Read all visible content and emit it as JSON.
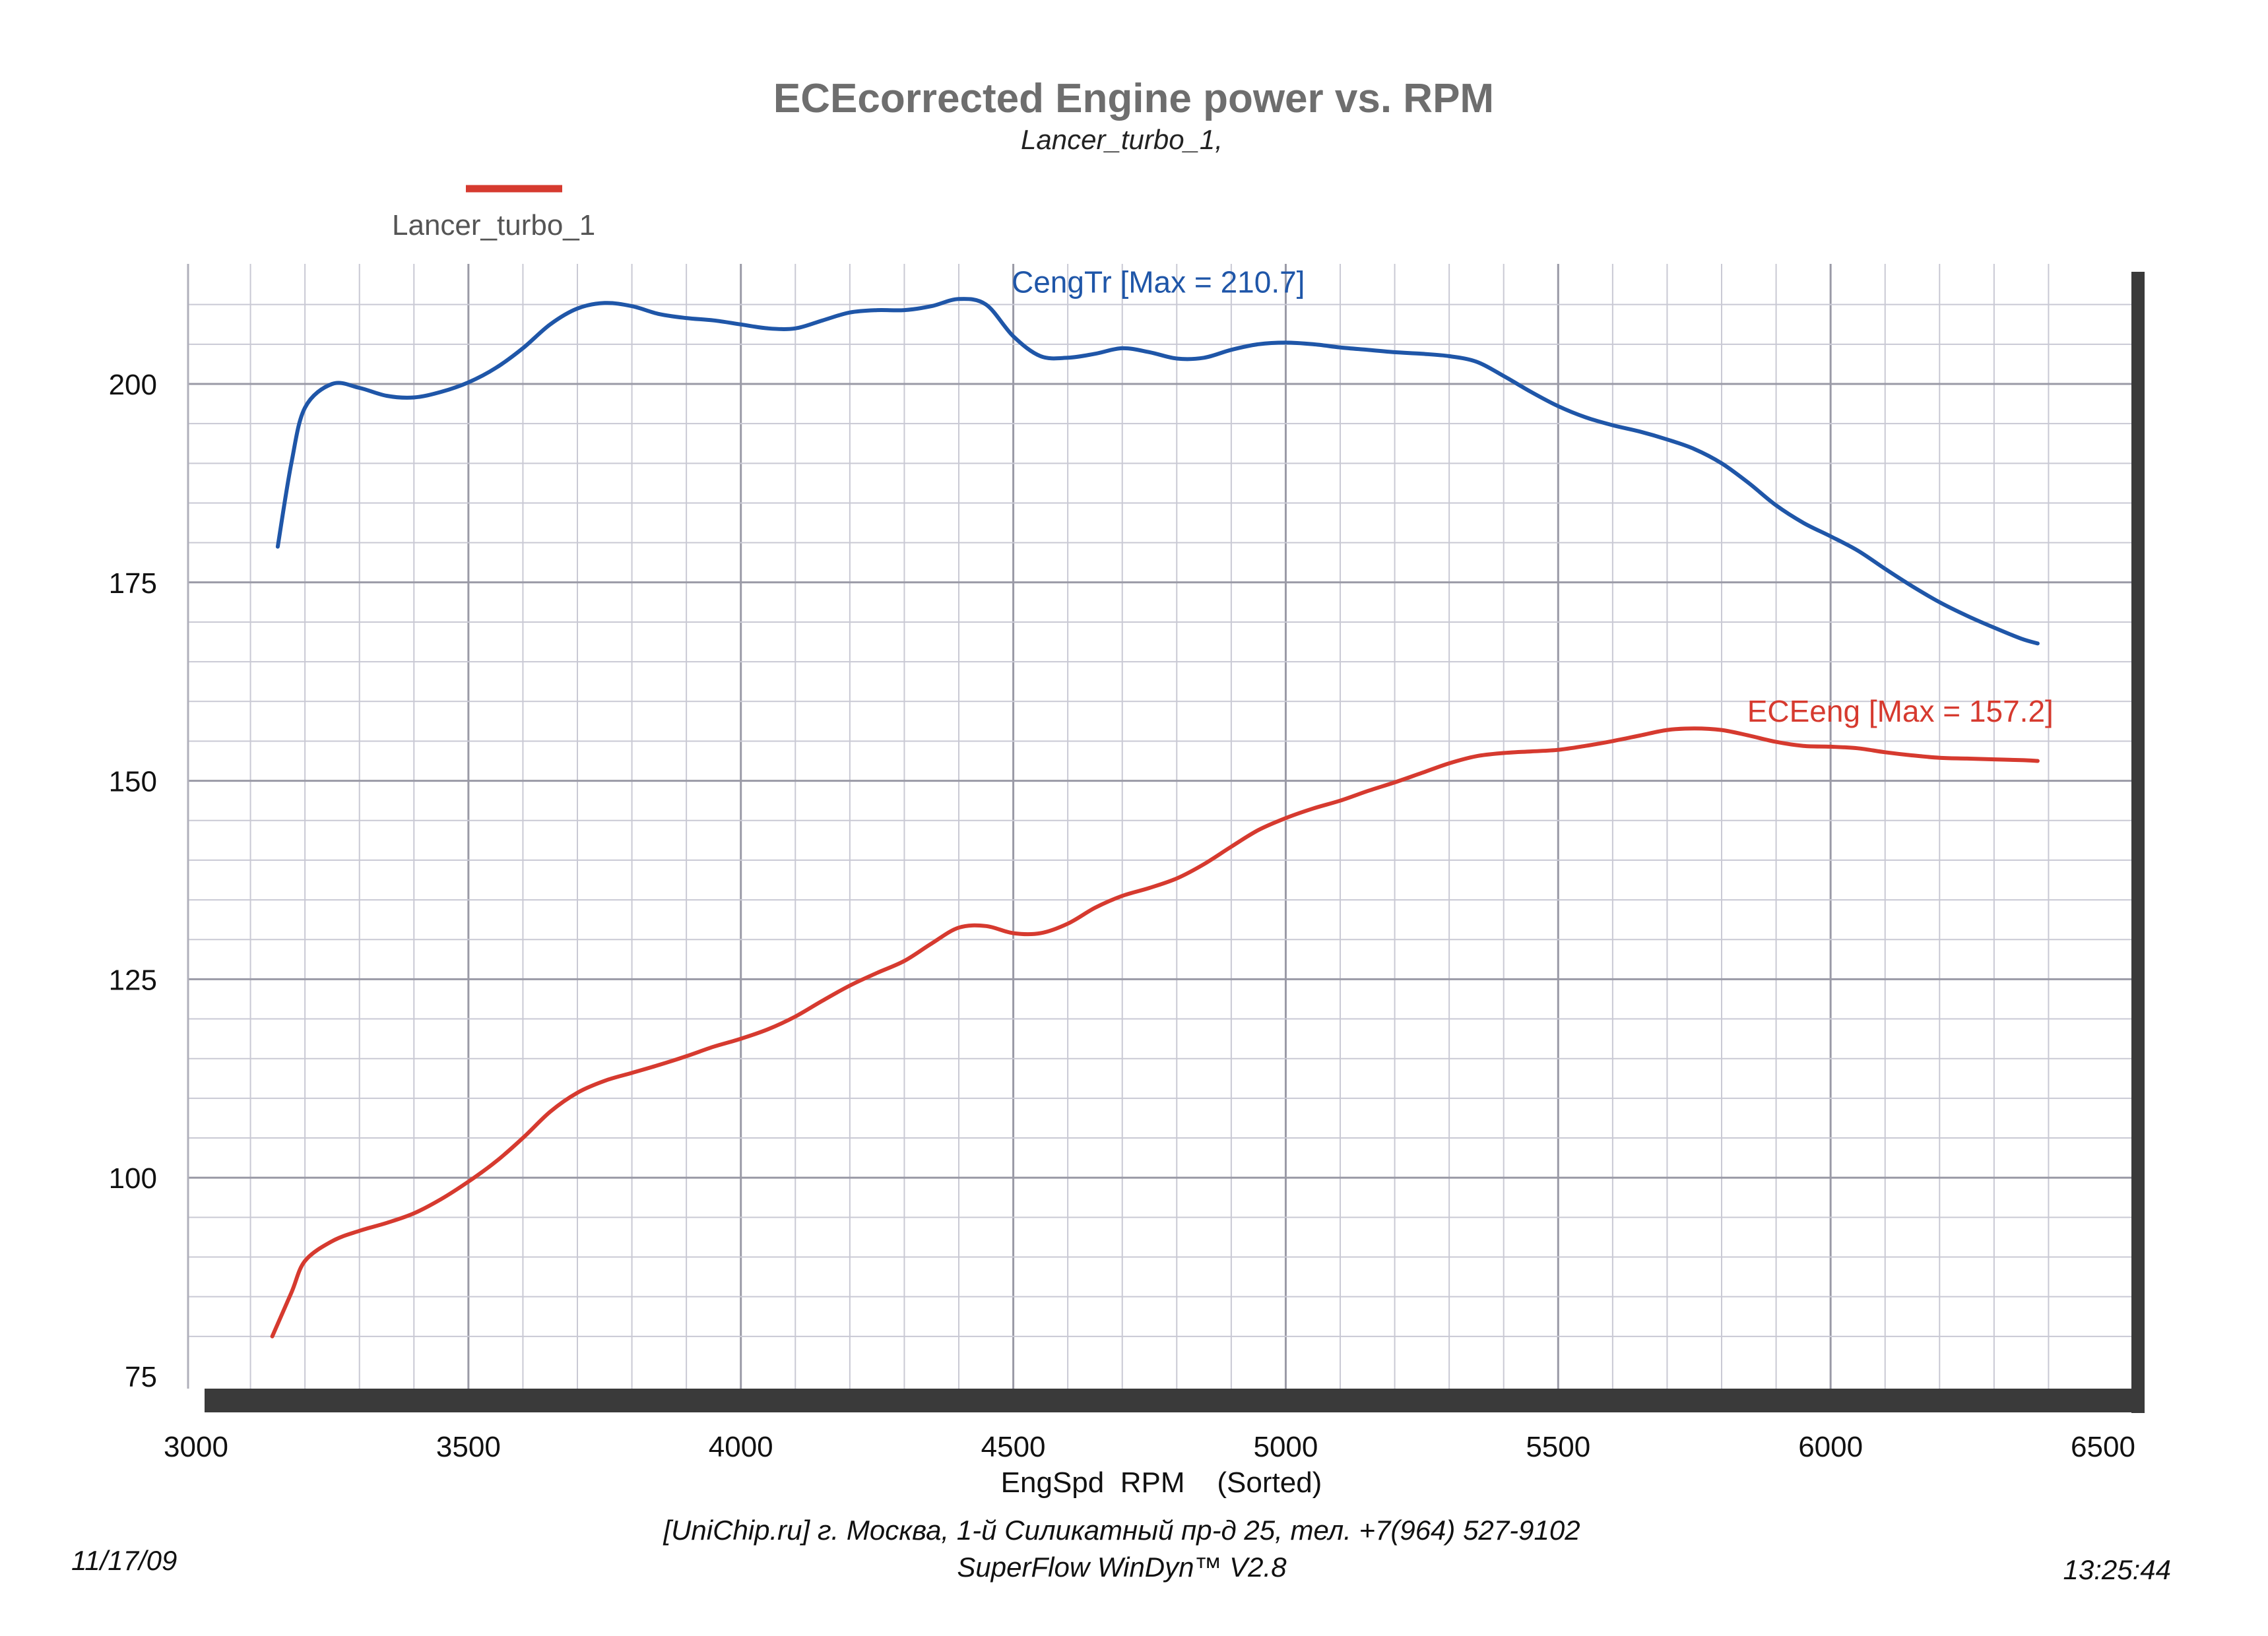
{
  "chart_data": {
    "type": "line",
    "title": "ECEcorrected Engine power vs. RPM",
    "subtitle": "Lancer_turbo_1,",
    "legend": {
      "label": "Lancer_turbo_1",
      "color": "#d63a2f",
      "placement": "top-left"
    },
    "xlabel": "EngSpd  RPM    (Sorted)",
    "ylabel": "",
    "xlim": [
      3000,
      6500
    ],
    "ylim": [
      75,
      210
    ],
    "x_ticks": [
      3000,
      3500,
      4000,
      4500,
      5000,
      5500,
      6000,
      6500
    ],
    "y_ticks": [
      75,
      100,
      125,
      150,
      175,
      200
    ],
    "grid": true,
    "series": [
      {
        "name": "CengTr",
        "annotation": "CengTr [Max = 210.7]",
        "color": "#1f56a8",
        "points": [
          [
            3150,
            179.5
          ],
          [
            3175,
            190
          ],
          [
            3200,
            197
          ],
          [
            3250,
            200
          ],
          [
            3300,
            199.5
          ],
          [
            3350,
            198.5
          ],
          [
            3400,
            198.3
          ],
          [
            3450,
            199
          ],
          [
            3500,
            200.2
          ],
          [
            3550,
            202
          ],
          [
            3600,
            204.5
          ],
          [
            3650,
            207.5
          ],
          [
            3700,
            209.5
          ],
          [
            3750,
            210.2
          ],
          [
            3800,
            209.8
          ],
          [
            3850,
            208.8
          ],
          [
            3900,
            208.3
          ],
          [
            3950,
            208
          ],
          [
            4000,
            207.5
          ],
          [
            4050,
            207
          ],
          [
            4100,
            207
          ],
          [
            4150,
            208
          ],
          [
            4200,
            209
          ],
          [
            4250,
            209.3
          ],
          [
            4300,
            209.3
          ],
          [
            4350,
            209.8
          ],
          [
            4400,
            210.7
          ],
          [
            4450,
            210
          ],
          [
            4500,
            206
          ],
          [
            4550,
            203.5
          ],
          [
            4600,
            203.3
          ],
          [
            4650,
            203.8
          ],
          [
            4700,
            204.5
          ],
          [
            4750,
            204
          ],
          [
            4800,
            203.2
          ],
          [
            4850,
            203.3
          ],
          [
            4900,
            204.3
          ],
          [
            4950,
            205
          ],
          [
            5000,
            205.2
          ],
          [
            5050,
            205
          ],
          [
            5100,
            204.6
          ],
          [
            5150,
            204.3
          ],
          [
            5200,
            204
          ],
          [
            5250,
            203.8
          ],
          [
            5300,
            203.5
          ],
          [
            5350,
            202.8
          ],
          [
            5400,
            201
          ],
          [
            5450,
            199
          ],
          [
            5500,
            197.2
          ],
          [
            5550,
            195.8
          ],
          [
            5600,
            194.8
          ],
          [
            5650,
            194
          ],
          [
            5700,
            193
          ],
          [
            5750,
            191.8
          ],
          [
            5800,
            190
          ],
          [
            5850,
            187.5
          ],
          [
            5900,
            184.7
          ],
          [
            5950,
            182.5
          ],
          [
            6000,
            180.8
          ],
          [
            6050,
            179
          ],
          [
            6100,
            176.7
          ],
          [
            6150,
            174.5
          ],
          [
            6200,
            172.5
          ],
          [
            6250,
            170.8
          ],
          [
            6300,
            169.3
          ],
          [
            6350,
            167.9
          ],
          [
            6380,
            167.3
          ]
        ]
      },
      {
        "name": "ECEeng",
        "annotation": "ECEeng [Max = 157.2]",
        "color": "#d63a2f",
        "points": [
          [
            3140,
            80
          ],
          [
            3175,
            85.5
          ],
          [
            3200,
            89.5
          ],
          [
            3250,
            92
          ],
          [
            3300,
            93.3
          ],
          [
            3350,
            94.3
          ],
          [
            3400,
            95.5
          ],
          [
            3450,
            97.3
          ],
          [
            3500,
            99.5
          ],
          [
            3550,
            102
          ],
          [
            3600,
            105
          ],
          [
            3650,
            108.3
          ],
          [
            3700,
            110.7
          ],
          [
            3750,
            112.2
          ],
          [
            3800,
            113.2
          ],
          [
            3850,
            114.2
          ],
          [
            3900,
            115.3
          ],
          [
            3950,
            116.5
          ],
          [
            4000,
            117.5
          ],
          [
            4050,
            118.7
          ],
          [
            4100,
            120.3
          ],
          [
            4150,
            122.3
          ],
          [
            4200,
            124.2
          ],
          [
            4250,
            125.8
          ],
          [
            4300,
            127.3
          ],
          [
            4350,
            129.5
          ],
          [
            4400,
            131.5
          ],
          [
            4450,
            131.7
          ],
          [
            4500,
            130.8
          ],
          [
            4550,
            130.8
          ],
          [
            4600,
            132
          ],
          [
            4650,
            134
          ],
          [
            4700,
            135.5
          ],
          [
            4750,
            136.5
          ],
          [
            4800,
            137.7
          ],
          [
            4850,
            139.5
          ],
          [
            4900,
            141.7
          ],
          [
            4950,
            143.8
          ],
          [
            5000,
            145.3
          ],
          [
            5050,
            146.5
          ],
          [
            5100,
            147.5
          ],
          [
            5150,
            148.7
          ],
          [
            5200,
            149.8
          ],
          [
            5250,
            151
          ],
          [
            5300,
            152.2
          ],
          [
            5350,
            153.1
          ],
          [
            5400,
            153.5
          ],
          [
            5450,
            153.7
          ],
          [
            5500,
            153.9
          ],
          [
            5550,
            154.4
          ],
          [
            5600,
            155
          ],
          [
            5650,
            155.7
          ],
          [
            5700,
            156.4
          ],
          [
            5750,
            156.6
          ],
          [
            5800,
            156.4
          ],
          [
            5850,
            155.7
          ],
          [
            5900,
            154.9
          ],
          [
            5950,
            154.4
          ],
          [
            6000,
            154.3
          ],
          [
            6050,
            154.1
          ],
          [
            6100,
            153.6
          ],
          [
            6150,
            153.2
          ],
          [
            6200,
            152.9
          ],
          [
            6250,
            152.8
          ],
          [
            6300,
            152.7
          ],
          [
            6350,
            152.6
          ],
          [
            6380,
            152.5
          ]
        ]
      }
    ]
  },
  "footer": {
    "line1": "[UniChip.ru] г. Москва, 1-й Силикатный пр-д 25, тел. +7(964) 527-9102",
    "line2": "SuperFlow WinDyn™ V2.8",
    "date": "11/17/09",
    "time": "13:25:44"
  }
}
